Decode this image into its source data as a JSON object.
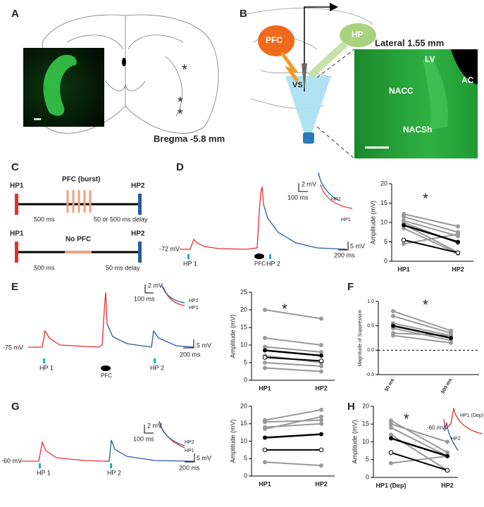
{
  "panels": {
    "labels": [
      "A",
      "B",
      "C",
      "D",
      "E",
      "F",
      "G",
      "H"
    ],
    "a": {
      "marks": [
        "*",
        "*",
        "*"
      ],
      "bregma": "Bregma -5.8 mm"
    },
    "b": {
      "pfc": "PFC",
      "hp": "HP",
      "vs": "VS",
      "lateral": "Lateral 1.55 mm",
      "lv": "LV",
      "ac": "AC",
      "nacc": "NACC",
      "nacsh": "NACSh"
    },
    "c": {
      "top": {
        "hp1": "HP1",
        "stim": "PFC (burst)",
        "hp2": "HP2",
        "gap": "500 ms",
        "delay": "50 or 500 ms delay"
      },
      "bottom": {
        "hp1": "HP1",
        "stim": "No PFC",
        "hp2": "HP2",
        "gap": "500 ms",
        "delay": "50 ms delay"
      }
    },
    "d": {
      "rest": "-72 mV",
      "hp1": "HP 1",
      "pfc": "PFC",
      "hp2": "HP 2",
      "vscale": "5 mV",
      "tscale": "200 ms",
      "ivscale": "2 mV",
      "itscale": "100 ms",
      "ihp2": "HP2",
      "ihp1": "HP1"
    },
    "e": {
      "rest": "-75 mV",
      "hp1": "HP 1",
      "pfc": "PFC",
      "hp2": "HP 2",
      "vscale": "5 mV",
      "tscale": "200 ms",
      "ivscale": "2 mV",
      "itscale": "100 ms",
      "ihp2": "HP2",
      "ihp1": "HP1"
    },
    "g": {
      "rest": "-60 mV",
      "hp1": "HP 1",
      "hp2": "HP 2",
      "vscale": "5 mV",
      "tscale": "200 ms",
      "ivscale": "2 mV",
      "itscale": "100 ms",
      "ihp2": "HP2",
      "ihp1": "HP1"
    },
    "h": {
      "ihp1": "HP1 (Dep)",
      "rest": "-60 mV",
      "ihp2": "HP2"
    }
  },
  "chart_data": [
    {
      "type": "line",
      "y_label": "Amplitude (mV)",
      "annotation": "*",
      "categories": [
        "HP1",
        "HP2"
      ],
      "ylim": [
        0,
        20
      ],
      "yticks": [
        0,
        5,
        10,
        15,
        20
      ],
      "series": [
        {
          "color": "#999999",
          "values": [
            12.2,
            9.0
          ]
        },
        {
          "color": "#999999",
          "values": [
            11.5,
            7.5
          ]
        },
        {
          "color": "#999999",
          "values": [
            10.5,
            6.5
          ]
        },
        {
          "color": "#999999",
          "values": [
            10.0,
            4.7
          ]
        },
        {
          "color": "#999999",
          "values": [
            9.5,
            2.3
          ]
        },
        {
          "color": "#999999",
          "values": [
            8.5,
            2.0
          ]
        },
        {
          "color": "#999999",
          "values": [
            4.5,
            7.0
          ]
        },
        {
          "color": "#000000",
          "marker": "open",
          "values": [
            5.5,
            2.2
          ]
        },
        {
          "color": "#000000",
          "values": [
            9.3,
            5.0
          ]
        }
      ]
    },
    {
      "type": "line",
      "y_label": "Amplitude (mV)",
      "annotation": "*",
      "categories": [
        "HP1",
        "HP2"
      ],
      "ylim": [
        0,
        25
      ],
      "yticks": [
        0,
        5,
        10,
        15,
        20,
        25
      ],
      "series": [
        {
          "color": "#999999",
          "values": [
            20,
            17.5
          ]
        },
        {
          "color": "#999999",
          "values": [
            12,
            10
          ]
        },
        {
          "color": "#999999",
          "values": [
            9.5,
            8
          ]
        },
        {
          "color": "#999999",
          "values": [
            7,
            5
          ]
        },
        {
          "color": "#999999",
          "values": [
            5,
            4
          ]
        },
        {
          "color": "#999999",
          "values": [
            3.5,
            2.5
          ]
        },
        {
          "color": "#000000",
          "marker": "open",
          "values": [
            6.5,
            5.5
          ]
        },
        {
          "color": "#000000",
          "values": [
            8.5,
            7
          ]
        }
      ]
    },
    {
      "type": "line",
      "y_label": "Magnitude of Suppression",
      "annotation": "*",
      "categories": [
        "50 ms",
        "500 ms"
      ],
      "ylim": [
        -0.5,
        1.0
      ],
      "yticks": [
        -0.5,
        {
          "value": 0,
          "label": "0.0"
        },
        0.5,
        {
          "value": 1,
          "label": "1.0"
        }
      ],
      "zero_line": true,
      "series": [
        {
          "color": "#999999",
          "values": [
            0.8,
            0.4
          ]
        },
        {
          "color": "#999999",
          "values": [
            0.7,
            0.35
          ]
        },
        {
          "color": "#999999",
          "values": [
            0.55,
            0.3
          ]
        },
        {
          "color": "#999999",
          "values": [
            0.45,
            0.2
          ]
        },
        {
          "color": "#999999",
          "values": [
            0.35,
            0.3
          ]
        },
        {
          "color": "#999999",
          "values": [
            0.3,
            0.15
          ]
        },
        {
          "color": "#000000",
          "values": [
            0.5,
            0.25
          ]
        }
      ]
    },
    {
      "type": "line",
      "y_label": "Amplitude (mV)",
      "categories": [
        "HP1",
        "HP2"
      ],
      "ylim": [
        0,
        20
      ],
      "yticks": [
        0,
        5,
        10,
        15,
        20
      ],
      "series": [
        {
          "color": "#999999",
          "values": [
            16,
            19
          ]
        },
        {
          "color": "#999999",
          "values": [
            15.5,
            16
          ]
        },
        {
          "color": "#999999",
          "values": [
            14,
            15
          ]
        },
        {
          "color": "#999999",
          "values": [
            13.5,
            17
          ]
        },
        {
          "color": "#999999",
          "values": [
            4,
            3
          ]
        },
        {
          "color": "#000000",
          "marker": "open",
          "values": [
            7.5,
            7.5
          ]
        },
        {
          "color": "#000000",
          "values": [
            11,
            12
          ]
        }
      ]
    },
    {
      "type": "line",
      "y_label": "Amplitude (mV)",
      "annotation": "*",
      "categories": [
        "HP1 (Dep)",
        "HP2"
      ],
      "ylim": [
        0,
        20
      ],
      "yticks": [
        0,
        5,
        10,
        15,
        20
      ],
      "series": [
        {
          "color": "#999999",
          "values": [
            16,
            7
          ]
        },
        {
          "color": "#999999",
          "values": [
            15,
            10
          ]
        },
        {
          "color": "#999999",
          "values": [
            14,
            6
          ]
        },
        {
          "color": "#999999",
          "values": [
            12,
            2
          ]
        },
        {
          "color": "#999999",
          "values": [
            4,
            6
          ]
        },
        {
          "color": "#000000",
          "marker": "open",
          "values": [
            7,
            2
          ]
        },
        {
          "color": "#000000",
          "values": [
            11,
            6
          ]
        }
      ]
    }
  ]
}
